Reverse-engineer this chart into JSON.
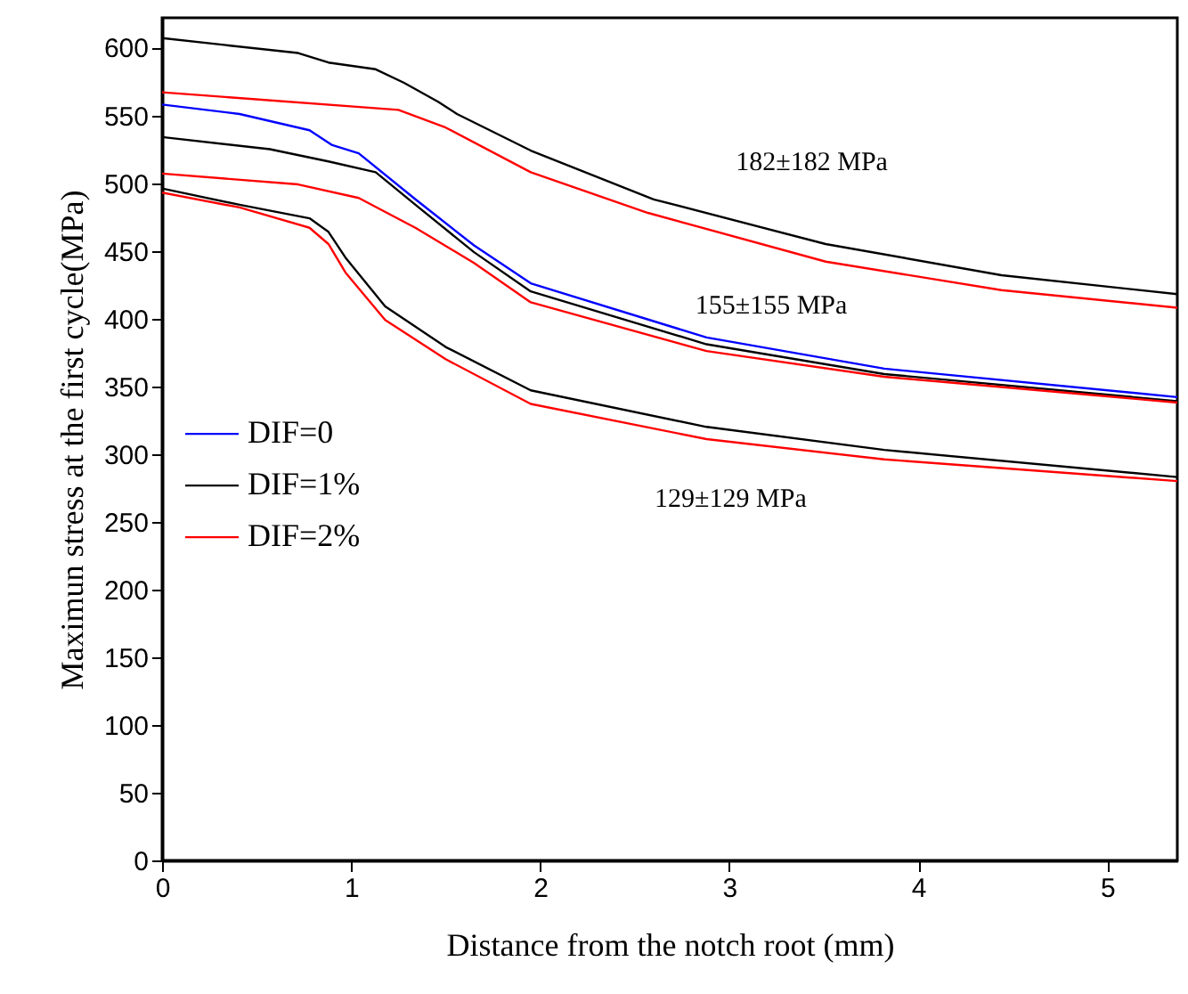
{
  "chart_data": {
    "type": "line",
    "xlabel": "Distance from the notch root (mm)",
    "ylabel": "Maximun stress at the first cycle(MPa)",
    "xlim": [
      0,
      5.37
    ],
    "ylim": [
      0,
      622
    ],
    "xticks": [
      0,
      1,
      2,
      3,
      4,
      5
    ],
    "yticks": [
      0,
      50,
      100,
      150,
      200,
      250,
      300,
      350,
      400,
      450,
      500,
      550,
      600
    ],
    "grid": false,
    "legend": "left",
    "line_style": "solid",
    "marker": "none",
    "annotations": [
      "182±182 MPa",
      "155±155 MPa",
      "129±129 MPa"
    ],
    "series": [
      {
        "name": "DIF=0",
        "color": "#0000ff",
        "x": [
          0,
          0.41,
          0.78,
          0.9,
          1.04,
          1.34,
          1.65,
          1.95,
          2.88,
          3.82,
          5.37
        ],
        "values": [
          558,
          551,
          539,
          528,
          522,
          488,
          454,
          426,
          386,
          363,
          342
        ]
      },
      {
        "name": "DIF=1%",
        "color": "#000000",
        "x": [
          0,
          0.72,
          0.88,
          1.13,
          1.28,
          1.46,
          1.56,
          1.95,
          2.6,
          3.51,
          4.44,
          5.37
        ],
        "values": [
          607,
          596,
          589,
          584,
          574,
          560,
          551,
          524,
          488,
          455,
          432,
          418
        ]
      },
      {
        "name": "DIF=2%",
        "color": "#ff0000",
        "x": [
          0,
          1.25,
          1.5,
          1.95,
          2.57,
          3.51,
          4.44,
          5.37
        ],
        "values": [
          567,
          554,
          541,
          508,
          478,
          442,
          421,
          408
        ]
      },
      {
        "color": "#000000",
        "x": [
          0,
          0.57,
          0.88,
          1.13,
          1.34,
          1.65,
          1.95,
          2.88,
          3.82,
          5.37
        ],
        "values": [
          534,
          525,
          516,
          508,
          484,
          449,
          420,
          381,
          359,
          339
        ]
      },
      {
        "color": "#ff0000",
        "x": [
          0,
          0.72,
          1.04,
          1.34,
          1.65,
          1.95,
          2.88,
          3.82,
          5.37
        ],
        "values": [
          507,
          499,
          489,
          467,
          441,
          412,
          376,
          357,
          338
        ]
      },
      {
        "color": "#000000",
        "x": [
          0,
          0.41,
          0.78,
          0.88,
          0.97,
          1.18,
          1.5,
          1.95,
          2.88,
          3.82,
          5.37
        ],
        "values": [
          496,
          484,
          474,
          464,
          445,
          409,
          379,
          347,
          320,
          303,
          283
        ]
      },
      {
        "color": "#ff0000",
        "x": [
          0,
          0.41,
          0.78,
          0.88,
          0.97,
          1.18,
          1.5,
          1.95,
          2.88,
          3.82,
          5.37
        ],
        "values": [
          493,
          482,
          467,
          455,
          434,
          399,
          370,
          337,
          311,
          296,
          280
        ]
      }
    ]
  }
}
